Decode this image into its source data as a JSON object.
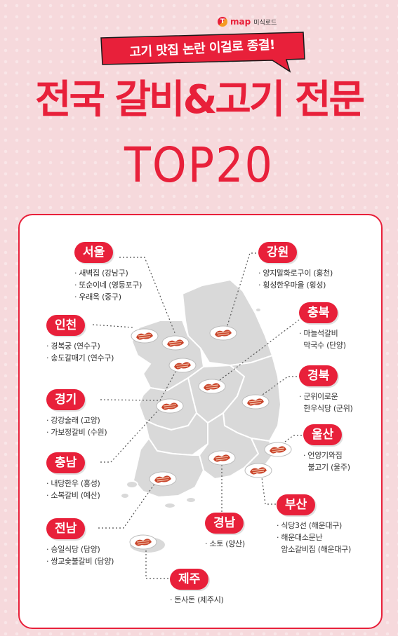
{
  "brand": {
    "logo": "T",
    "name": "map",
    "sub": "미식로드"
  },
  "banner": {
    "text": "고기 맛집 논란 이걸로 종결!"
  },
  "title": {
    "main": "전국 갈비&고기 전문",
    "sub": "TOP20"
  },
  "regions": [
    {
      "id": "seoul",
      "name": "서울",
      "items": [
        "새벽집 (강남구)",
        "또순이네 (영등포구)",
        "우래옥 (중구)"
      ]
    },
    {
      "id": "incheon",
      "name": "인천",
      "items": [
        "경복궁 (연수구)",
        "송도갈매기 (연수구)"
      ]
    },
    {
      "id": "gyeonggi",
      "name": "경기",
      "items": [
        "강강술래 (고양)",
        "가보정갈비 (수원)"
      ]
    },
    {
      "id": "chungnam",
      "name": "충남",
      "items": [
        "내당한우 (홍성)",
        "소복갈비 (예산)"
      ]
    },
    {
      "id": "jeonnam",
      "name": "전남",
      "items": [
        "승일식당 (담양)",
        "쌍교숯불갈비 (담양)"
      ]
    },
    {
      "id": "jeju",
      "name": "제주",
      "items": [
        "돈사돈 (제주시)"
      ]
    },
    {
      "id": "gangwon",
      "name": "강원",
      "items": [
        "양지말화로구이 (홍천)",
        "횡성한우마을 (횡성)"
      ]
    },
    {
      "id": "chungbuk",
      "name": "충북",
      "items": [
        "마늘석갈비",
        "막국수 (단양)"
      ]
    },
    {
      "id": "gyeongbuk",
      "name": "경북",
      "items": [
        "군위이로운",
        "한우식당 (군위)"
      ]
    },
    {
      "id": "ulsan",
      "name": "울산",
      "items": [
        "언양기와집",
        "불고기 (울주)"
      ]
    },
    {
      "id": "busan",
      "name": "부산",
      "items": [
        "식당3선 (해운대구)",
        "해운대소문난",
        "암소갈비집 (해운대구)"
      ]
    },
    {
      "id": "gyeongnam",
      "name": "경남",
      "items": [
        "소토 (양산)"
      ]
    }
  ],
  "colors": {
    "accent": "#e8203a",
    "background": "#f6d9dc",
    "map": "#d9d9d9",
    "mapLine": "#ffffff"
  }
}
